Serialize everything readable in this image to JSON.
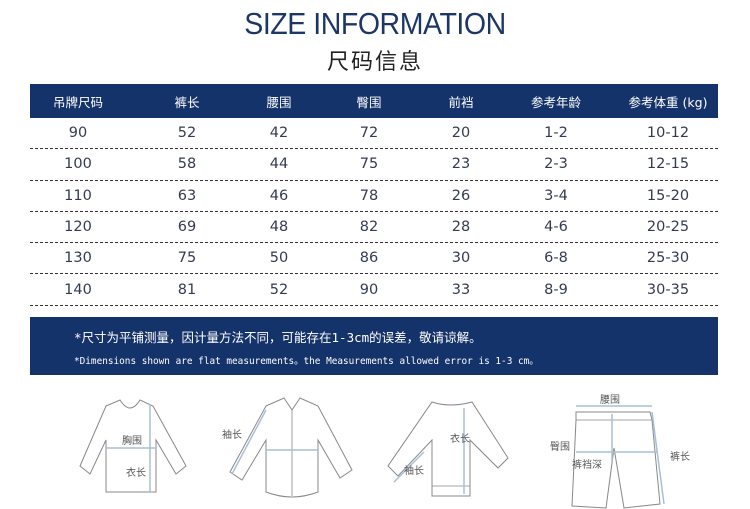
{
  "header": {
    "title": "SIZE INFORMATION",
    "subtitle": "尺码信息"
  },
  "table": {
    "columns": [
      "吊牌尺码",
      "裤长",
      "腰围",
      "臀围",
      "前裆",
      "参考年龄",
      "参考体重 (kg)"
    ],
    "rows": [
      [
        "90",
        "52",
        "42",
        "72",
        "20",
        "1-2",
        "10-12"
      ],
      [
        "100",
        "58",
        "44",
        "75",
        "23",
        "2-3",
        "12-15"
      ],
      [
        "110",
        "63",
        "46",
        "78",
        "26",
        "3-4",
        "15-20"
      ],
      [
        "120",
        "69",
        "48",
        "82",
        "28",
        "4-6",
        "20-25"
      ],
      [
        "130",
        "75",
        "50",
        "86",
        "30",
        "6-8",
        "25-30"
      ],
      [
        "140",
        "81",
        "52",
        "90",
        "33",
        "8-9",
        "30-35"
      ]
    ]
  },
  "note": {
    "cn": "*尺寸为平铺测量，因计量方法不同，可能存在1-3cm的误差，敬请谅解。",
    "en": "*Dimensions shown are flat measurements。the Measurements allowed error is 1-3 cm。"
  },
  "illustrations": {
    "tshirt": {
      "chest": "胸围",
      "length": "衣长"
    },
    "shirt": {
      "sleeve": "袖长"
    },
    "sweater": {
      "length": "衣长",
      "sleeve": "袖长"
    },
    "pants": {
      "waist": "腰围",
      "hip": "臀围",
      "rise": "裤裆深",
      "length": "裤长"
    }
  },
  "colors": {
    "navy": "#15336b",
    "measure_line": "#a9bfd6"
  }
}
